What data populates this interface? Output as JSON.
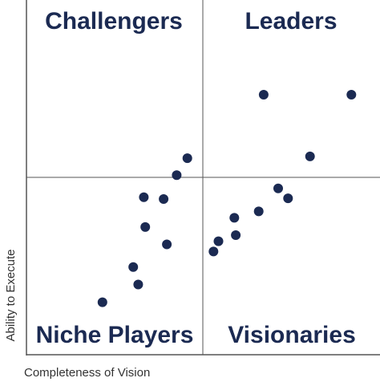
{
  "chart_data": {
    "type": "scatter",
    "title": "",
    "xlabel": "Completeness of Vision",
    "ylabel": "Ability to Execute",
    "xlim": [
      0,
      100
    ],
    "ylim": [
      0,
      100
    ],
    "grid": false,
    "quadrants": {
      "top_left": "Challengers",
      "top_right": "Leaders",
      "bottom_left": "Niche Players",
      "bottom_right": "Visionaries"
    },
    "points": [
      {
        "x": 21.5,
        "y": 14.8
      },
      {
        "x": 31.6,
        "y": 19.8
      },
      {
        "x": 30.2,
        "y": 24.7
      },
      {
        "x": 33.6,
        "y": 36.0
      },
      {
        "x": 33.2,
        "y": 44.4
      },
      {
        "x": 39.7,
        "y": 31.1
      },
      {
        "x": 38.8,
        "y": 43.9
      },
      {
        "x": 42.5,
        "y": 50.6
      },
      {
        "x": 45.5,
        "y": 55.4
      },
      {
        "x": 52.9,
        "y": 29.1
      },
      {
        "x": 54.3,
        "y": 32.0
      },
      {
        "x": 59.2,
        "y": 33.7
      },
      {
        "x": 58.8,
        "y": 38.6
      },
      {
        "x": 65.7,
        "y": 40.4
      },
      {
        "x": 74.0,
        "y": 44.1
      },
      {
        "x": 71.2,
        "y": 46.9
      },
      {
        "x": 80.2,
        "y": 55.9
      },
      {
        "x": 67.1,
        "y": 73.3
      },
      {
        "x": 91.9,
        "y": 73.3
      }
    ],
    "colors": {
      "point": "#1b2a52",
      "text": "#1b2a52",
      "frame": "#555555",
      "axis_label": "#333333"
    }
  }
}
